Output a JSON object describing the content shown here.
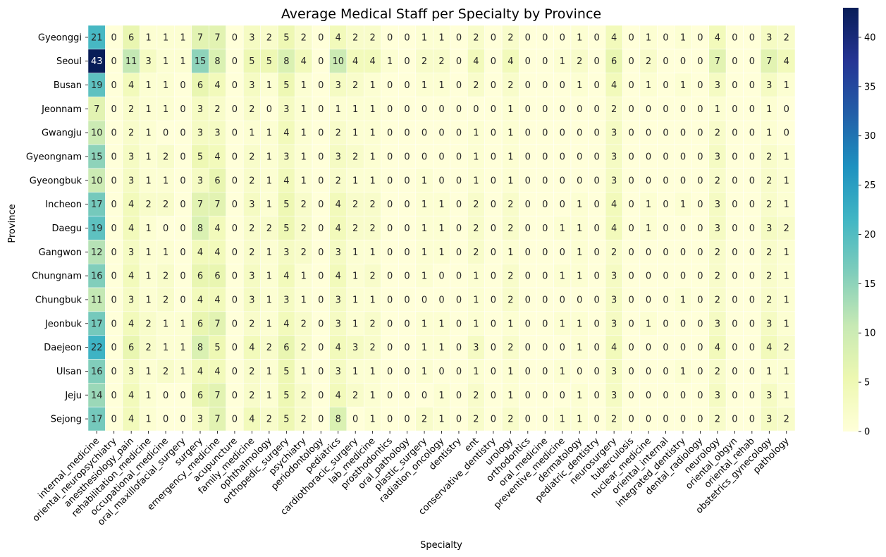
{
  "chart_data": {
    "type": "heatmap",
    "title": "Average Medical Staff per Specialty by Province",
    "xlabel": "Specialty",
    "ylabel": "Province",
    "colormap": "YlGnBu",
    "colorbar": {
      "min": 0,
      "max": 43,
      "ticks": [
        0,
        5,
        10,
        15,
        20,
        25,
        30,
        35,
        40
      ],
      "tick_labels": [
        "0",
        "5",
        "10",
        "15",
        "20",
        "25",
        "30",
        "35",
        "40"
      ],
      "colors": [
        "#ffffd9",
        "#edf8b1",
        "#c7e9b4",
        "#7fcdbb",
        "#41b6c4",
        "#1d91c0",
        "#225ea8",
        "#253494",
        "#081d58"
      ]
    },
    "x": [
      "internal_medicine",
      "oriental_neuropsychiatry",
      "anesthesiology_pain",
      "rehabilitation_medicine",
      "occupational_medicine",
      "oral_maxillofacial_surgery",
      "surgery",
      "emergency_medicine",
      "acupuncture",
      "family_medicine",
      "ophthalmology",
      "orthopedic_surgery",
      "psychiatry",
      "periodontology",
      "pediatrics",
      "cardiothoracic_surgery",
      "lab_medicine",
      "prosthodontics",
      "oral_pathology",
      "plastic_surgery",
      "radiation_oncology",
      "dentistry",
      "ent",
      "conservative_dentistry",
      "urology",
      "orthodontics",
      "oral_medicine",
      "preventive_medicine",
      "dermatology",
      "pediatric_dentistry",
      "neurosurgery",
      "tuberculosis",
      "nuclear_medicine",
      "oriental_internal",
      "integrated_dentistry",
      "dental_radiology",
      "neurology",
      "oriental_obgyn",
      "oriental_rehab",
      "obstetrics_gynecology",
      "pathology"
    ],
    "y": [
      "Gyeonggi",
      "Seoul",
      "Busan",
      "Jeonnam",
      "Gwangju",
      "Gyeongnam",
      "Gyeongbuk",
      "Incheon",
      "Daegu",
      "Gangwon",
      "Chungnam",
      "Chungbuk",
      "Jeonbuk",
      "Daejeon",
      "Ulsan",
      "Jeju",
      "Sejong"
    ],
    "values": [
      [
        21,
        0,
        6,
        1,
        1,
        1,
        7,
        7,
        0,
        3,
        2,
        5,
        2,
        0,
        4,
        2,
        2,
        0,
        0,
        1,
        1,
        0,
        2,
        0,
        2,
        0,
        0,
        0,
        1,
        0,
        4,
        0,
        1,
        0,
        1,
        0,
        4,
        0,
        0,
        3,
        2
      ],
      [
        43,
        0,
        11,
        3,
        1,
        1,
        15,
        8,
        0,
        5,
        5,
        8,
        4,
        0,
        10,
        4,
        4,
        1,
        0,
        2,
        2,
        0,
        4,
        0,
        4,
        0,
        0,
        1,
        2,
        0,
        6,
        0,
        2,
        0,
        0,
        0,
        7,
        0,
        0,
        7,
        4
      ],
      [
        19,
        0,
        4,
        1,
        1,
        0,
        6,
        4,
        0,
        3,
        1,
        5,
        1,
        0,
        3,
        2,
        1,
        0,
        0,
        1,
        1,
        0,
        2,
        0,
        2,
        0,
        0,
        0,
        1,
        0,
        4,
        0,
        1,
        0,
        1,
        0,
        3,
        0,
        0,
        3,
        1
      ],
      [
        7,
        0,
        2,
        1,
        1,
        0,
        3,
        2,
        0,
        2,
        0,
        3,
        1,
        0,
        1,
        1,
        1,
        0,
        0,
        0,
        0,
        0,
        0,
        0,
        1,
        0,
        0,
        0,
        0,
        0,
        2,
        0,
        0,
        0,
        0,
        0,
        1,
        0,
        0,
        1,
        0
      ],
      [
        10,
        0,
        2,
        1,
        0,
        0,
        3,
        3,
        0,
        1,
        1,
        4,
        1,
        0,
        2,
        1,
        1,
        0,
        0,
        0,
        0,
        0,
        1,
        0,
        1,
        0,
        0,
        0,
        0,
        0,
        3,
        0,
        0,
        0,
        0,
        0,
        2,
        0,
        0,
        1,
        0
      ],
      [
        15,
        0,
        3,
        1,
        2,
        0,
        5,
        4,
        0,
        2,
        1,
        3,
        1,
        0,
        3,
        2,
        1,
        0,
        0,
        0,
        0,
        0,
        1,
        0,
        1,
        0,
        0,
        0,
        0,
        0,
        3,
        0,
        0,
        0,
        0,
        0,
        3,
        0,
        0,
        2,
        1
      ],
      [
        10,
        0,
        3,
        1,
        1,
        0,
        3,
        6,
        0,
        2,
        1,
        4,
        1,
        0,
        2,
        1,
        1,
        0,
        0,
        1,
        0,
        0,
        1,
        0,
        1,
        0,
        0,
        0,
        0,
        0,
        3,
        0,
        0,
        0,
        0,
        0,
        2,
        0,
        0,
        2,
        1
      ],
      [
        17,
        0,
        4,
        2,
        2,
        0,
        7,
        7,
        0,
        3,
        1,
        5,
        2,
        0,
        4,
        2,
        2,
        0,
        0,
        1,
        1,
        0,
        2,
        0,
        2,
        0,
        0,
        0,
        1,
        0,
        4,
        0,
        1,
        0,
        1,
        0,
        3,
        0,
        0,
        2,
        1
      ],
      [
        19,
        0,
        4,
        1,
        0,
        0,
        8,
        4,
        0,
        2,
        2,
        5,
        2,
        0,
        4,
        2,
        2,
        0,
        0,
        1,
        1,
        0,
        2,
        0,
        2,
        0,
        0,
        1,
        1,
        0,
        4,
        0,
        1,
        0,
        0,
        0,
        3,
        0,
        0,
        3,
        2
      ],
      [
        12,
        0,
        3,
        1,
        1,
        0,
        4,
        4,
        0,
        2,
        1,
        3,
        2,
        0,
        3,
        1,
        1,
        0,
        0,
        1,
        1,
        0,
        2,
        0,
        1,
        0,
        0,
        0,
        1,
        0,
        2,
        0,
        0,
        0,
        0,
        0,
        2,
        0,
        0,
        2,
        1
      ],
      [
        16,
        0,
        4,
        1,
        2,
        0,
        6,
        6,
        0,
        3,
        1,
        4,
        1,
        0,
        4,
        1,
        2,
        0,
        0,
        1,
        0,
        0,
        1,
        0,
        2,
        0,
        0,
        1,
        1,
        0,
        3,
        0,
        0,
        0,
        0,
        0,
        2,
        0,
        0,
        2,
        1
      ],
      [
        11,
        0,
        3,
        1,
        2,
        0,
        4,
        4,
        0,
        3,
        1,
        3,
        1,
        0,
        3,
        1,
        1,
        0,
        0,
        0,
        0,
        0,
        1,
        0,
        2,
        0,
        0,
        0,
        0,
        0,
        3,
        0,
        0,
        0,
        1,
        0,
        2,
        0,
        0,
        2,
        1
      ],
      [
        17,
        0,
        4,
        2,
        1,
        1,
        6,
        7,
        0,
        2,
        1,
        4,
        2,
        0,
        3,
        1,
        2,
        0,
        0,
        1,
        1,
        0,
        1,
        0,
        1,
        0,
        0,
        1,
        1,
        0,
        3,
        0,
        1,
        0,
        0,
        0,
        3,
        0,
        0,
        3,
        1
      ],
      [
        22,
        0,
        6,
        2,
        1,
        1,
        8,
        5,
        0,
        4,
        2,
        6,
        2,
        0,
        4,
        3,
        2,
        0,
        0,
        1,
        1,
        0,
        3,
        0,
        2,
        0,
        0,
        0,
        1,
        0,
        4,
        0,
        0,
        0,
        0,
        0,
        4,
        0,
        0,
        4,
        2
      ],
      [
        16,
        0,
        3,
        1,
        2,
        1,
        4,
        4,
        0,
        2,
        1,
        5,
        1,
        0,
        3,
        1,
        1,
        0,
        0,
        1,
        0,
        0,
        1,
        0,
        1,
        0,
        0,
        1,
        0,
        0,
        3,
        0,
        0,
        0,
        1,
        0,
        2,
        0,
        0,
        1,
        1
      ],
      [
        14,
        0,
        4,
        1,
        0,
        0,
        6,
        7,
        0,
        2,
        1,
        5,
        2,
        0,
        4,
        2,
        1,
        0,
        0,
        0,
        1,
        0,
        2,
        0,
        1,
        0,
        0,
        0,
        1,
        0,
        3,
        0,
        0,
        0,
        0,
        0,
        3,
        0,
        0,
        3,
        1
      ],
      [
        17,
        0,
        4,
        1,
        0,
        0,
        3,
        7,
        0,
        4,
        2,
        5,
        2,
        0,
        8,
        0,
        1,
        0,
        0,
        2,
        1,
        0,
        2,
        0,
        2,
        0,
        0,
        1,
        1,
        0,
        2,
        0,
        0,
        0,
        0,
        0,
        2,
        0,
        0,
        3,
        2
      ]
    ]
  }
}
